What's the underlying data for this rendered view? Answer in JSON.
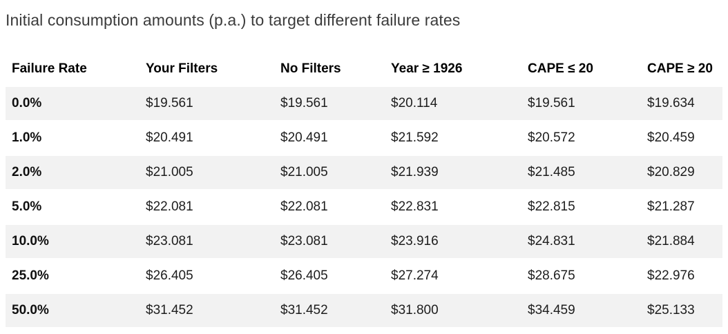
{
  "title": "Initial consumption amounts (p.a.) to target different failure rates",
  "chart_data": {
    "type": "table",
    "title": "Initial consumption amounts (p.a.) to target different failure rates",
    "columns": [
      "Failure Rate",
      "Your Filters",
      "No Filters",
      "Year ≥ 1926",
      "CAPE ≤ 20",
      "CAPE ≥ 20"
    ],
    "rows": [
      [
        "0.0%",
        "$19.561",
        "$19.561",
        "$20.114",
        "$19.561",
        "$19.634"
      ],
      [
        "1.0%",
        "$20.491",
        "$20.491",
        "$21.592",
        "$20.572",
        "$20.459"
      ],
      [
        "2.0%",
        "$21.005",
        "$21.005",
        "$21.939",
        "$21.485",
        "$20.829"
      ],
      [
        "5.0%",
        "$22.081",
        "$22.081",
        "$22.831",
        "$22.815",
        "$21.287"
      ],
      [
        "10.0%",
        "$23.081",
        "$23.081",
        "$23.916",
        "$24.831",
        "$21.884"
      ],
      [
        "25.0%",
        "$26.405",
        "$26.405",
        "$27.274",
        "$28.675",
        "$22.976"
      ],
      [
        "50.0%",
        "$31.452",
        "$31.452",
        "$31.800",
        "$34.459",
        "$25.133"
      ]
    ],
    "layout": {
      "stripe_style": "alternating rows, odd rows shaded",
      "first_column_bold": true
    }
  },
  "colors": {
    "background": "#ffffff",
    "title_text": "#3b3b3b",
    "header_text": "#000000",
    "body_text": "#1d1d1d",
    "row_stripe": "#f2f2f2"
  }
}
